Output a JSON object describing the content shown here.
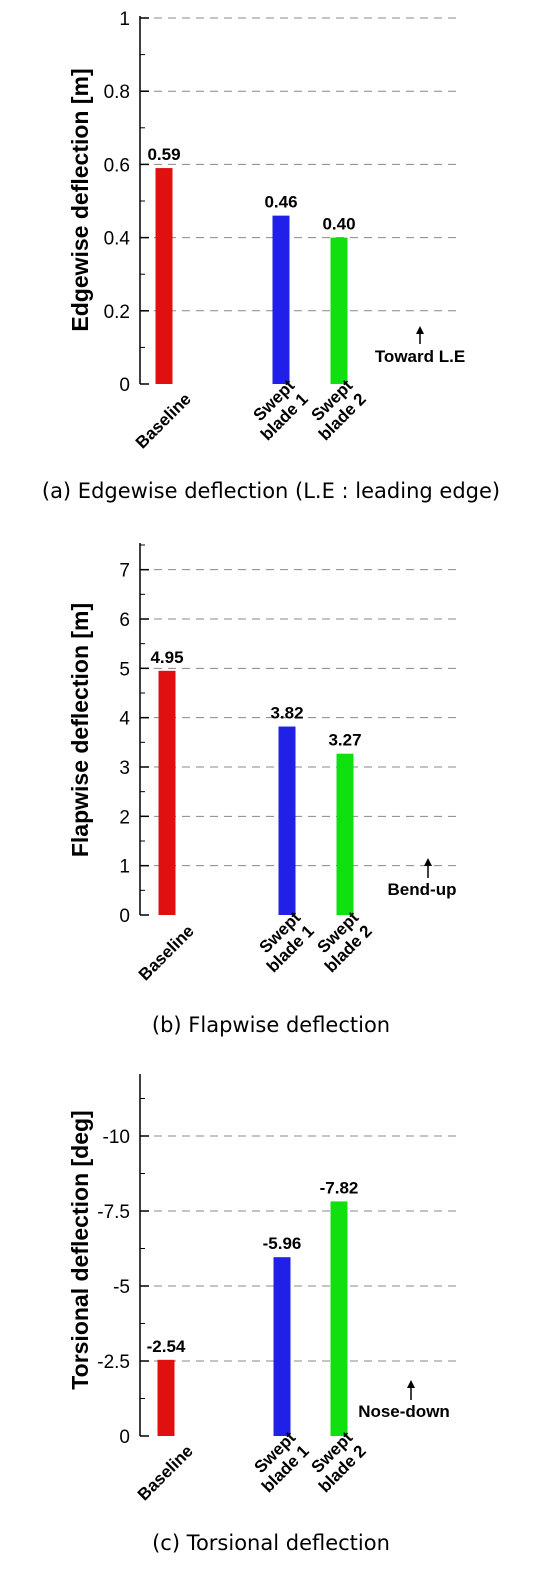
{
  "chart_data": [
    {
      "type": "bar",
      "categories": [
        "Baseline",
        "Swept blade 1",
        "Swept blade 2"
      ],
      "category_lines": [
        [
          "Baseline"
        ],
        [
          "Swept",
          "blade 1"
        ],
        [
          "Swept",
          "blade 2"
        ]
      ],
      "values": [
        0.59,
        0.46,
        0.4
      ],
      "value_labels": [
        "0.59",
        "0.46",
        "0.40"
      ],
      "colors": [
        "#e01010",
        "#2020e8",
        "#10e010"
      ],
      "ylabel": "Edgewise deflection [m]",
      "ylim": [
        0,
        1
      ],
      "yticks": [
        0,
        0.2,
        0.4,
        0.6,
        0.8,
        1
      ],
      "ytick_labels": [
        "0",
        "0.2",
        "0.4",
        "0.6",
        "0.8",
        "1"
      ],
      "grid": true,
      "annotation": "Toward L.E",
      "caption": "(a) Edgewise deflection (L.E : leading edge)"
    },
    {
      "type": "bar",
      "categories": [
        "Baseline",
        "Swept blade 1",
        "Swept blade 2"
      ],
      "category_lines": [
        [
          "Baseline"
        ],
        [
          "Swept",
          "blade 1"
        ],
        [
          "Swept",
          "blade 2"
        ]
      ],
      "values": [
        4.95,
        3.82,
        3.27
      ],
      "value_labels": [
        "4.95",
        "3.82",
        "3.27"
      ],
      "colors": [
        "#e01010",
        "#2020e8",
        "#10e010"
      ],
      "ylabel": "Flapwise deflection [m]",
      "ylim": [
        0,
        7.5
      ],
      "yticks": [
        0,
        1,
        2,
        3,
        4,
        5,
        6,
        7
      ],
      "ytick_labels": [
        "0",
        "1",
        "2",
        "3",
        "4",
        "5",
        "6",
        "7"
      ],
      "grid": true,
      "annotation": "Bend-up",
      "caption": "(b) Flapwise deflection"
    },
    {
      "type": "bar",
      "categories": [
        "Baseline",
        "Swept blade 1",
        "Swept blade 2"
      ],
      "category_lines": [
        [
          "Baseline"
        ],
        [
          "Swept",
          "blade 1"
        ],
        [
          "Swept",
          "blade 2"
        ]
      ],
      "values": [
        -2.54,
        -5.96,
        -7.82
      ],
      "value_labels": [
        "-2.54",
        "-5.96",
        "-7.82"
      ],
      "colors": [
        "#e01010",
        "#2020e8",
        "#10e010"
      ],
      "ylabel": "Torsional deflection [deg]",
      "ylim": [
        0,
        -12
      ],
      "yticks": [
        0,
        -2.5,
        -5,
        -7.5,
        -10
      ],
      "ytick_labels": [
        "0",
        "-2.5",
        "-5",
        "-7.5",
        "-10"
      ],
      "grid": true,
      "annotation": "Nose-down",
      "caption": "(c) Torsional deflection"
    }
  ]
}
